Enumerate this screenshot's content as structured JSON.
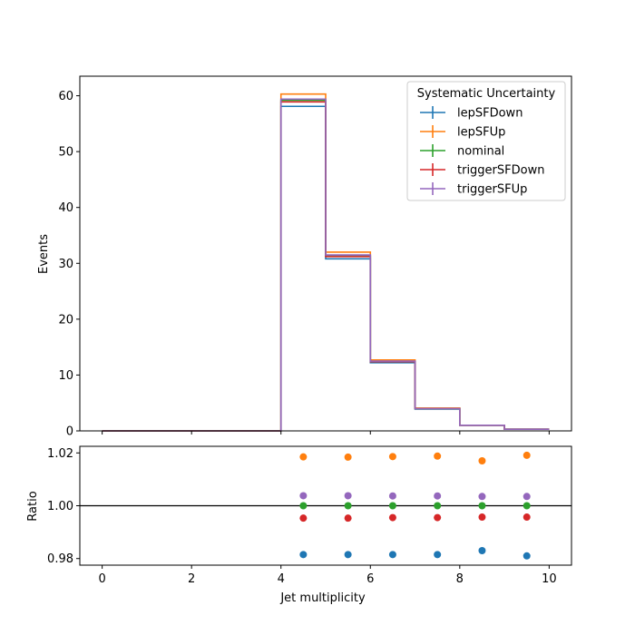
{
  "chart_data": [
    {
      "type": "step",
      "panel": "main",
      "xlabel": "",
      "ylabel": "Events",
      "xlim": [
        -0.5,
        10.5
      ],
      "ylim": [
        0,
        63.5
      ],
      "yticks": [
        0,
        10,
        20,
        30,
        40,
        50,
        60
      ],
      "bin_edges": [
        0,
        1,
        2,
        3,
        4,
        5,
        6,
        7,
        8,
        9,
        10
      ],
      "legend": {
        "title": "Systematic Uncertainty",
        "placement": "top-right"
      },
      "series": [
        {
          "name": "lepSFDown",
          "color": "#1f77b4",
          "values": [
            0,
            0,
            0,
            0,
            58.1,
            30.8,
            12.2,
            3.9,
            1.0,
            0.3
          ]
        },
        {
          "name": "lepSFUp",
          "color": "#ff7f0e",
          "values": [
            0,
            0,
            0,
            0,
            60.3,
            32.0,
            12.7,
            4.1,
            1.0,
            0.3
          ]
        },
        {
          "name": "nominal",
          "color": "#2ca02c",
          "values": [
            0,
            0,
            0,
            0,
            59.2,
            31.4,
            12.4,
            4.0,
            1.0,
            0.3
          ]
        },
        {
          "name": "triggerSFDown",
          "color": "#d62728",
          "values": [
            0,
            0,
            0,
            0,
            58.9,
            31.2,
            12.4,
            4.0,
            1.0,
            0.3
          ]
        },
        {
          "name": "triggerSFUp",
          "color": "#9467bd",
          "values": [
            0,
            0,
            0,
            0,
            59.4,
            31.5,
            12.5,
            4.0,
            1.0,
            0.3
          ]
        }
      ]
    },
    {
      "type": "scatter",
      "panel": "ratio",
      "xlabel": "Jet multiplicity",
      "ylabel": "Ratio",
      "xlim": [
        -0.5,
        10.5
      ],
      "ylim": [
        0.9775,
        1.0225
      ],
      "xticks": [
        0,
        2,
        4,
        6,
        8,
        10
      ],
      "yticks": [
        0.98,
        1.0,
        1.02
      ],
      "ytick_labels": [
        "0.98",
        "1.00",
        "1.02"
      ],
      "reference_line": 1.0,
      "x": [
        4.5,
        5.5,
        6.5,
        7.5,
        8.5,
        9.5
      ],
      "series": [
        {
          "name": "lepSFDown",
          "color": "#1f77b4",
          "values": [
            0.9815,
            0.9815,
            0.9815,
            0.9815,
            0.983,
            0.981
          ]
        },
        {
          "name": "lepSFUp",
          "color": "#ff7f0e",
          "values": [
            1.0185,
            1.0184,
            1.0186,
            1.0188,
            1.017,
            1.0191
          ]
        },
        {
          "name": "nominal",
          "color": "#2ca02c",
          "values": [
            1.0,
            1.0,
            1.0,
            1.0,
            1.0,
            1.0
          ]
        },
        {
          "name": "triggerSFDown",
          "color": "#d62728",
          "values": [
            0.9953,
            0.9953,
            0.9955,
            0.9955,
            0.9957,
            0.9957
          ]
        },
        {
          "name": "triggerSFUp",
          "color": "#9467bd",
          "values": [
            1.0038,
            1.0038,
            1.0037,
            1.0037,
            1.0035,
            1.0035
          ]
        }
      ]
    }
  ]
}
